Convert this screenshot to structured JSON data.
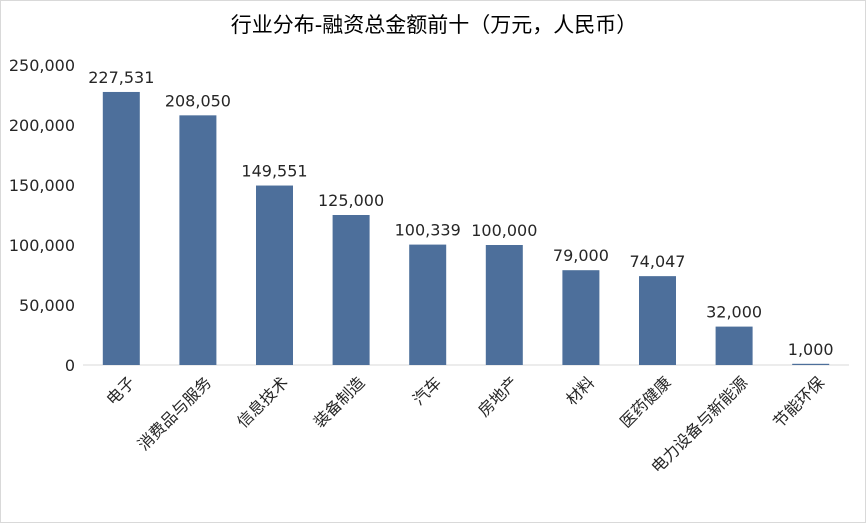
{
  "chart_data": {
    "type": "bar",
    "title": "行业分布-融资总金额前十（万元，人民币）",
    "categories": [
      "电子",
      "消费品与服务",
      "信息技术",
      "装备制造",
      "汽车",
      "房地产",
      "材料",
      "医药健康",
      "电力设备与新能源",
      "节能环保"
    ],
    "values": [
      227531,
      208050,
      149551,
      125000,
      100339,
      100000,
      79000,
      74047,
      32000,
      1000
    ],
    "data_labels": [
      "227,531",
      "208,050",
      "149,551",
      "125,000",
      "100,339",
      "100,000",
      "79,000",
      "74,047",
      "32,000",
      "1,000"
    ],
    "y_ticks": [
      "0",
      "50,000",
      "100,000",
      "150,000",
      "200,000",
      "250,000"
    ],
    "ylim": [
      0,
      250000
    ],
    "xlabel": "",
    "ylabel": "",
    "grid": false,
    "legend": "none",
    "bar_color": "#4d6f9b"
  }
}
